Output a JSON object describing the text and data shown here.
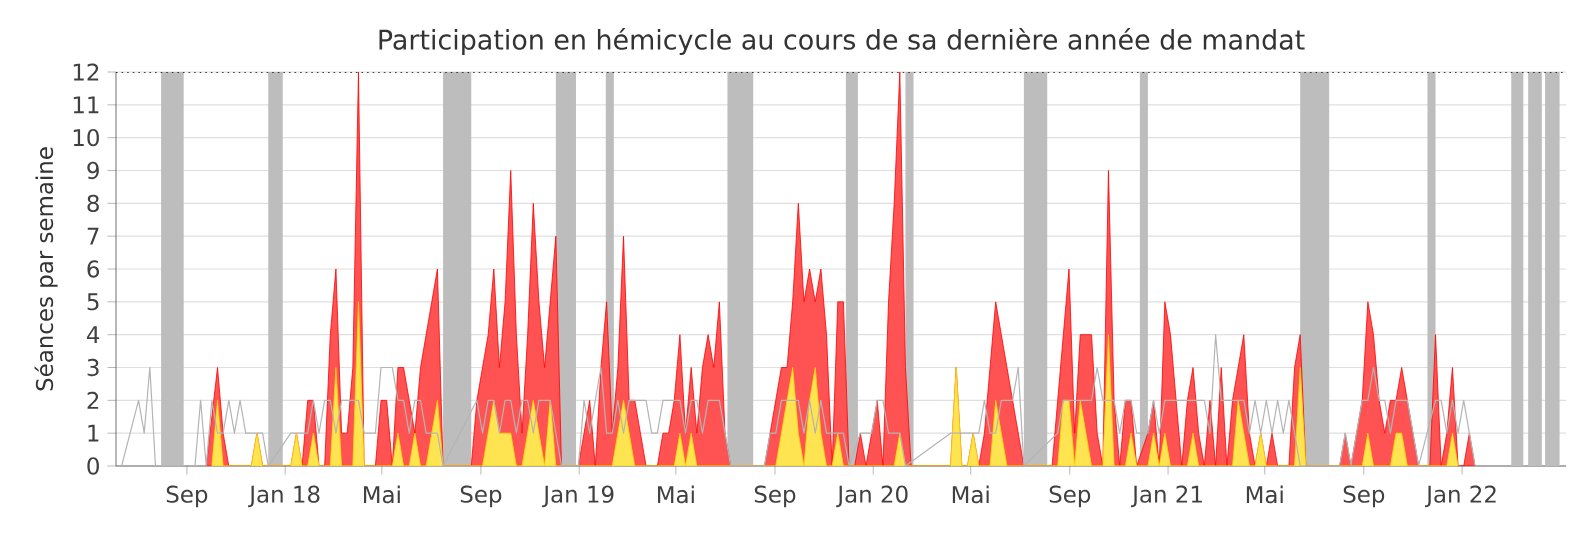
{
  "chart_data": {
    "type": "area",
    "title": "Participation en hémicycle au cours de sa dernière année de mandat",
    "ylabel": "Séances par semaine",
    "xlim": [
      "2017-06-05",
      "2022-05-10"
    ],
    "ylim": [
      0,
      12
    ],
    "xticks": [
      {
        "value": "2017-09-01",
        "label": "Sep"
      },
      {
        "value": "2018-01-01",
        "label": "Jan 18"
      },
      {
        "value": "2018-05-01",
        "label": "Mai"
      },
      {
        "value": "2018-09-01",
        "label": "Sep"
      },
      {
        "value": "2019-01-01",
        "label": "Jan 19"
      },
      {
        "value": "2019-05-01",
        "label": "Mai"
      },
      {
        "value": "2019-09-01",
        "label": "Sep"
      },
      {
        "value": "2020-01-01",
        "label": "Jan 20"
      },
      {
        "value": "2020-05-01",
        "label": "Mai"
      },
      {
        "value": "2020-09-01",
        "label": "Sep"
      },
      {
        "value": "2021-01-01",
        "label": "Jan 21"
      },
      {
        "value": "2021-05-01",
        "label": "Mai"
      },
      {
        "value": "2021-09-01",
        "label": "Sep"
      },
      {
        "value": "2022-01-01",
        "label": "Jan 22"
      }
    ],
    "yticks": [
      0,
      1,
      2,
      3,
      4,
      5,
      6,
      7,
      8,
      9,
      10,
      11,
      12
    ],
    "grid": "y",
    "bands": [
      {
        "axis": "x",
        "from": "2017-07-31",
        "to": "2017-08-28",
        "color": "#bdbdbd"
      },
      {
        "axis": "x",
        "from": "2017-12-11",
        "to": "2017-12-29",
        "color": "#bdbdbd"
      },
      {
        "axis": "x",
        "from": "2018-07-16",
        "to": "2018-08-20",
        "color": "#bdbdbd"
      },
      {
        "axis": "x",
        "from": "2018-12-03",
        "to": "2018-12-28",
        "color": "#bdbdbd"
      },
      {
        "axis": "x",
        "from": "2019-02-03",
        "to": "2019-02-13",
        "color": "#bdbdbd"
      },
      {
        "axis": "x",
        "from": "2019-07-04",
        "to": "2019-08-05",
        "color": "#bdbdbd"
      },
      {
        "axis": "x",
        "from": "2019-11-28",
        "to": "2019-12-13",
        "color": "#bdbdbd"
      },
      {
        "axis": "x",
        "from": "2020-02-10",
        "to": "2020-02-20",
        "color": "#bdbdbd"
      },
      {
        "axis": "x",
        "from": "2020-07-06",
        "to": "2020-08-04",
        "color": "#bdbdbd"
      },
      {
        "axis": "x",
        "from": "2020-11-27",
        "to": "2020-12-07",
        "color": "#bdbdbd"
      },
      {
        "axis": "x",
        "from": "2021-06-14",
        "to": "2021-07-20",
        "color": "#bdbdbd"
      },
      {
        "axis": "x",
        "from": "2021-11-19",
        "to": "2021-11-29",
        "color": "#bdbdbd"
      },
      {
        "axis": "x",
        "from": "2022-03-03",
        "to": "2022-03-18",
        "color": "#bdbdbd"
      },
      {
        "axis": "x",
        "from": "2022-03-24",
        "to": "2022-04-10",
        "color": "#bdbdbd"
      },
      {
        "axis": "x",
        "from": "2022-04-14",
        "to": "2022-05-02",
        "color": "#bdbdbd"
      }
    ],
    "ref_lines": [
      {
        "axis": "y",
        "value": 12,
        "color": "#000000",
        "line_style": "dotted"
      }
    ],
    "series": [
      {
        "color": "#ff0000",
        "x": [
          "2017-09-25",
          "2017-10-09",
          "2017-10-16",
          "2017-10-23",
          "2017-11-20",
          "2017-11-27",
          "2017-12-04",
          "2018-01-08",
          "2018-01-15",
          "2018-01-22",
          "2018-01-29",
          "2018-02-05",
          "2018-02-12",
          "2018-02-19",
          "2018-02-26",
          "2018-03-05",
          "2018-03-12",
          "2018-03-19",
          "2018-03-26",
          "2018-04-02",
          "2018-04-09",
          "2018-04-23",
          "2018-04-30",
          "2018-05-07",
          "2018-05-14",
          "2018-05-21",
          "2018-05-28",
          "2018-06-04",
          "2018-06-11",
          "2018-06-18",
          "2018-06-25",
          "2018-07-02",
          "2018-07-09",
          "2018-07-16",
          "2018-08-20",
          "2018-08-27",
          "2018-09-03",
          "2018-09-10",
          "2018-09-17",
          "2018-09-24",
          "2018-10-01",
          "2018-10-08",
          "2018-10-15",
          "2018-10-22",
          "2018-10-29",
          "2018-11-05",
          "2018-11-12",
          "2018-11-19",
          "2018-11-26",
          "2018-12-03",
          "2018-12-10",
          "2018-12-31",
          "2019-01-07",
          "2019-01-14",
          "2019-01-21",
          "2019-01-28",
          "2019-02-04",
          "2019-02-11",
          "2019-02-18",
          "2019-02-25",
          "2019-03-04",
          "2019-03-11",
          "2019-03-18",
          "2019-03-25",
          "2019-04-08",
          "2019-04-15",
          "2019-04-22",
          "2019-04-29",
          "2019-05-06",
          "2019-05-13",
          "2019-05-20",
          "2019-05-27",
          "2019-06-03",
          "2019-06-10",
          "2019-06-17",
          "2019-06-24",
          "2019-07-01",
          "2019-07-08",
          "2019-08-19",
          "2019-08-26",
          "2019-09-02",
          "2019-09-09",
          "2019-09-16",
          "2019-09-23",
          "2019-09-30",
          "2019-10-07",
          "2019-10-14",
          "2019-10-21",
          "2019-10-28",
          "2019-11-04",
          "2019-11-11",
          "2019-11-18",
          "2019-11-25",
          "2019-12-02",
          "2019-12-09",
          "2019-12-16",
          "2019-12-23",
          "2019-12-30",
          "2020-01-06",
          "2020-01-13",
          "2020-01-20",
          "2020-01-27",
          "2020-02-03",
          "2020-02-10",
          "2020-02-17",
          "2020-04-06",
          "2020-04-13",
          "2020-04-20",
          "2020-04-27",
          "2020-05-04",
          "2020-05-11",
          "2020-05-18",
          "2020-05-25",
          "2020-06-01",
          "2020-06-08",
          "2020-06-15",
          "2020-06-22",
          "2020-06-29",
          "2020-07-06",
          "2020-08-10",
          "2020-08-17",
          "2020-08-24",
          "2020-08-31",
          "2020-09-07",
          "2020-09-14",
          "2020-09-21",
          "2020-09-28",
          "2020-10-05",
          "2020-10-12",
          "2020-10-19",
          "2020-10-26",
          "2020-11-02",
          "2020-11-09",
          "2020-11-16",
          "2020-11-23",
          "2020-12-07",
          "2020-12-14",
          "2020-12-21",
          "2020-12-28",
          "2021-01-04",
          "2021-01-11",
          "2021-01-18",
          "2021-01-25",
          "2021-02-01",
          "2021-02-08",
          "2021-02-15",
          "2021-02-22",
          "2021-03-01",
          "2021-03-08",
          "2021-03-15",
          "2021-03-22",
          "2021-03-29",
          "2021-04-05",
          "2021-04-12",
          "2021-04-19",
          "2021-04-26",
          "2021-05-03",
          "2021-05-10",
          "2021-05-17",
          "2021-05-31",
          "2021-06-07",
          "2021-06-14",
          "2021-06-21",
          "2021-08-02",
          "2021-08-09",
          "2021-08-16",
          "2021-08-23",
          "2021-08-30",
          "2021-09-06",
          "2021-09-13",
          "2021-09-20",
          "2021-09-27",
          "2021-10-04",
          "2021-10-11",
          "2021-10-18",
          "2021-10-25",
          "2021-11-01",
          "2021-11-08",
          "2021-11-22",
          "2021-11-29",
          "2021-12-06",
          "2021-12-13",
          "2021-12-20",
          "2021-12-27",
          "2022-01-03",
          "2022-01-10",
          "2022-01-17"
        ],
        "values": [
          0,
          3,
          1,
          0,
          0,
          1,
          0,
          0,
          1,
          0,
          2,
          2,
          0,
          0,
          4,
          6,
          1,
          1,
          3,
          12,
          0,
          0,
          2,
          2,
          0,
          3,
          3,
          2,
          1,
          3,
          4,
          5,
          6,
          0,
          0,
          2,
          3,
          4,
          6,
          3,
          5,
          9,
          4,
          1,
          4,
          8,
          5,
          3,
          5,
          7,
          0,
          0,
          1,
          2,
          0,
          3,
          5,
          1,
          3,
          7,
          2,
          2,
          1,
          0,
          0,
          1,
          1,
          2,
          4,
          1,
          3,
          1,
          3,
          4,
          3,
          5,
          1,
          0,
          0,
          1,
          2,
          3,
          3,
          5,
          8,
          5,
          6,
          5,
          6,
          4,
          0,
          5,
          5,
          0,
          0,
          1,
          0,
          1,
          2,
          0,
          5,
          8,
          12,
          3,
          0,
          0,
          3,
          0,
          0,
          1,
          0,
          1,
          3,
          5,
          4,
          3,
          2,
          1,
          0,
          0,
          2,
          4,
          6,
          1,
          4,
          4,
          4,
          1,
          0,
          9,
          2,
          0,
          2,
          2,
          0,
          1,
          2,
          0,
          5,
          4,
          2,
          0,
          2,
          3,
          1,
          0,
          2,
          0,
          3,
          0,
          2,
          3,
          4,
          1,
          0,
          1,
          0,
          1,
          0,
          0,
          3,
          4,
          0,
          0,
          1,
          0,
          1,
          2,
          5,
          4,
          2,
          1,
          2,
          2,
          3,
          2,
          1,
          0,
          0,
          4,
          0,
          1,
          3,
          0,
          0,
          1,
          0
        ]
      },
      {
        "color": "#ffd700",
        "x": [
          "2017-10-02",
          "2017-10-09",
          "2017-10-16",
          "2017-11-20",
          "2017-11-27",
          "2017-12-04",
          "2018-01-08",
          "2018-01-15",
          "2018-01-22",
          "2018-01-29",
          "2018-02-05",
          "2018-02-12",
          "2018-02-26",
          "2018-03-05",
          "2018-03-12",
          "2018-03-26",
          "2018-04-02",
          "2018-04-09",
          "2018-05-14",
          "2018-05-21",
          "2018-05-28",
          "2018-06-04",
          "2018-06-11",
          "2018-06-18",
          "2018-06-25",
          "2018-07-02",
          "2018-07-09",
          "2018-07-16",
          "2018-09-03",
          "2018-09-10",
          "2018-09-17",
          "2018-09-24",
          "2018-10-01",
          "2018-10-08",
          "2018-10-15",
          "2018-10-22",
          "2018-10-29",
          "2018-11-05",
          "2018-11-12",
          "2018-11-19",
          "2018-11-26",
          "2018-12-03",
          "2019-02-11",
          "2019-02-18",
          "2019-02-25",
          "2019-03-04",
          "2019-03-11",
          "2019-04-29",
          "2019-05-06",
          "2019-05-13",
          "2019-05-20",
          "2019-05-27",
          "2019-09-02",
          "2019-09-09",
          "2019-09-16",
          "2019-09-23",
          "2019-09-30",
          "2019-10-07",
          "2019-10-14",
          "2019-10-21",
          "2019-10-28",
          "2019-11-04",
          "2019-11-11",
          "2019-11-18",
          "2019-11-25",
          "2020-01-27",
          "2020-02-03",
          "2020-02-10",
          "2020-04-06",
          "2020-04-13",
          "2020-04-20",
          "2020-04-27",
          "2020-05-04",
          "2020-05-11",
          "2020-05-25",
          "2020-06-01",
          "2020-06-08",
          "2020-06-15",
          "2020-08-17",
          "2020-08-24",
          "2020-08-31",
          "2020-09-07",
          "2020-09-14",
          "2020-09-21",
          "2020-09-28",
          "2020-10-12",
          "2020-10-19",
          "2020-10-26",
          "2020-11-09",
          "2020-11-16",
          "2020-11-23",
          "2020-12-07",
          "2020-12-14",
          "2020-12-21",
          "2020-12-28",
          "2021-01-04",
          "2021-01-25",
          "2021-02-01",
          "2021-02-08",
          "2021-03-22",
          "2021-03-29",
          "2021-04-05",
          "2021-04-12",
          "2021-04-19",
          "2021-04-26",
          "2021-05-03",
          "2021-06-07",
          "2021-06-14",
          "2021-06-21",
          "2021-08-30",
          "2021-09-06",
          "2021-09-13",
          "2021-10-04",
          "2021-10-11",
          "2021-10-18",
          "2021-10-25",
          "2021-12-13",
          "2021-12-20",
          "2021-12-27"
        ],
        "values": [
          0,
          2,
          0,
          0,
          1,
          0,
          0,
          1,
          0,
          0,
          1,
          0,
          0,
          3,
          0,
          0,
          5,
          0,
          0,
          1,
          0,
          0,
          1,
          0,
          0,
          1,
          2,
          0,
          0,
          1,
          2,
          1,
          1,
          1,
          0,
          0,
          1,
          2,
          1,
          0,
          2,
          0,
          0,
          1,
          2,
          1,
          0,
          0,
          1,
          0,
          1,
          0,
          0,
          1,
          2,
          3,
          1,
          0,
          2,
          3,
          1,
          0,
          0,
          1,
          0,
          0,
          1,
          0,
          0,
          3,
          0,
          0,
          1,
          0,
          0,
          2,
          1,
          0,
          0,
          2,
          2,
          0,
          2,
          1,
          0,
          0,
          4,
          0,
          0,
          1,
          0,
          0,
          1,
          0,
          1,
          0,
          0,
          1,
          0,
          0,
          2,
          1,
          0,
          0,
          1,
          0,
          0,
          3,
          0,
          0,
          1,
          0,
          0,
          1,
          1,
          0,
          0,
          1,
          0
        ]
      },
      {
        "type": "line",
        "color": "#b4b4b4",
        "x": [
          "2017-06-12",
          "2017-07-03",
          "2017-07-10",
          "2017-07-17",
          "2017-07-24",
          "2017-09-11",
          "2017-09-18",
          "2017-09-25",
          "2017-10-02",
          "2017-10-09",
          "2017-10-16",
          "2017-10-23",
          "2017-10-30",
          "2017-11-06",
          "2017-11-13",
          "2017-11-20",
          "2017-11-27",
          "2017-12-04",
          "2017-12-11",
          "2018-01-08",
          "2018-01-15",
          "2018-01-22",
          "2018-01-29",
          "2018-02-05",
          "2018-02-12",
          "2018-02-19",
          "2018-02-26",
          "2018-03-05",
          "2018-03-12",
          "2018-03-19",
          "2018-03-26",
          "2018-04-02",
          "2018-04-09",
          "2018-04-23",
          "2018-04-30",
          "2018-05-07",
          "2018-05-14",
          "2018-05-21",
          "2018-05-28",
          "2018-06-04",
          "2018-06-11",
          "2018-06-18",
          "2018-06-25",
          "2018-07-09",
          "2018-07-16",
          "2018-08-27",
          "2018-09-03",
          "2018-09-10",
          "2018-09-17",
          "2018-09-24",
          "2018-10-01",
          "2018-10-08",
          "2018-10-15",
          "2018-10-22",
          "2018-10-29",
          "2018-11-05",
          "2018-11-12",
          "2018-11-19",
          "2018-11-26",
          "2018-12-03",
          "2018-12-10",
          "2018-12-31",
          "2019-01-07",
          "2019-01-14",
          "2019-01-21",
          "2019-01-28",
          "2019-02-04",
          "2019-02-11",
          "2019-02-18",
          "2019-02-25",
          "2019-03-04",
          "2019-03-11",
          "2019-03-18",
          "2019-03-25",
          "2019-04-01",
          "2019-04-08",
          "2019-04-15",
          "2019-04-22",
          "2019-04-29",
          "2019-05-06",
          "2019-05-13",
          "2019-05-20",
          "2019-05-27",
          "2019-06-03",
          "2019-06-10",
          "2019-06-17",
          "2019-06-24",
          "2019-07-01",
          "2019-07-08",
          "2019-08-19",
          "2019-08-26",
          "2019-09-02",
          "2019-09-09",
          "2019-09-16",
          "2019-09-23",
          "2019-09-30",
          "2019-10-07",
          "2019-10-14",
          "2019-10-21",
          "2019-10-28",
          "2019-11-04",
          "2019-11-11",
          "2019-11-18",
          "2019-11-25",
          "2019-12-02",
          "2019-12-16",
          "2019-12-23",
          "2019-12-30",
          "2020-01-06",
          "2020-01-13",
          "2020-01-20",
          "2020-01-27",
          "2020-02-03",
          "2020-02-10",
          "2020-04-06",
          "2020-04-13",
          "2020-04-20",
          "2020-04-27",
          "2020-05-04",
          "2020-05-11",
          "2020-05-18",
          "2020-05-25",
          "2020-06-01",
          "2020-06-08",
          "2020-06-15",
          "2020-06-22",
          "2020-06-29",
          "2020-07-06",
          "2020-08-17",
          "2020-08-24",
          "2020-08-31",
          "2020-09-07",
          "2020-09-14",
          "2020-09-21",
          "2020-09-28",
          "2020-10-05",
          "2020-10-12",
          "2020-10-19",
          "2020-10-26",
          "2020-11-02",
          "2020-11-09",
          "2020-11-16",
          "2020-11-23",
          "2020-12-07",
          "2020-12-14",
          "2020-12-21",
          "2020-12-28",
          "2021-01-04",
          "2021-01-11",
          "2021-01-18",
          "2021-01-25",
          "2021-02-01",
          "2021-02-08",
          "2021-02-15",
          "2021-02-22",
          "2021-03-01",
          "2021-03-08",
          "2021-03-15",
          "2021-03-22",
          "2021-03-29",
          "2021-04-05",
          "2021-04-12",
          "2021-04-19",
          "2021-04-26",
          "2021-05-03",
          "2021-05-10",
          "2021-05-17",
          "2021-05-24",
          "2021-05-31",
          "2021-06-07",
          "2021-06-14",
          "2021-08-02",
          "2021-08-09",
          "2021-08-16",
          "2021-08-23",
          "2021-08-30",
          "2021-09-06",
          "2021-09-13",
          "2021-09-20",
          "2021-09-27",
          "2021-10-04",
          "2021-10-11",
          "2021-10-18",
          "2021-10-25",
          "2021-11-01",
          "2021-11-08",
          "2021-11-29",
          "2021-12-06",
          "2021-12-13",
          "2021-12-20",
          "2021-12-27",
          "2022-01-03",
          "2022-01-10",
          "2022-01-17"
        ],
        "values": [
          0,
          2,
          1,
          3,
          0,
          0,
          2,
          0,
          2,
          1,
          1,
          2,
          1,
          2,
          1,
          1,
          1,
          1,
          0,
          1,
          1,
          1,
          1,
          2,
          1,
          2,
          2,
          1,
          2,
          2,
          2,
          2,
          1,
          1,
          3,
          3,
          3,
          2,
          2,
          1,
          2,
          2,
          1,
          1,
          0,
          2,
          1,
          2,
          2,
          1,
          2,
          2,
          1,
          2,
          2,
          1,
          2,
          2,
          2,
          1,
          0,
          0,
          2,
          1,
          2,
          3,
          1,
          1,
          2,
          1,
          2,
          2,
          2,
          2,
          1,
          1,
          2,
          2,
          2,
          2,
          1,
          2,
          2,
          1,
          2,
          2,
          2,
          1,
          0,
          0,
          1,
          1,
          2,
          2,
          2,
          2,
          1,
          2,
          1,
          2,
          1,
          1,
          1,
          1,
          0,
          1,
          1,
          1,
          2,
          2,
          1,
          1,
          1,
          0,
          1,
          1,
          1,
          1,
          1,
          1,
          2,
          1,
          1,
          2,
          2,
          2,
          3,
          0,
          1,
          2,
          2,
          2,
          2,
          2,
          2,
          3,
          2,
          2,
          2,
          1,
          2,
          2,
          1,
          1,
          2,
          1,
          2,
          2,
          2,
          2,
          2,
          2,
          2,
          2,
          1,
          4,
          2,
          2,
          2,
          2,
          2,
          1,
          2,
          1,
          2,
          1,
          2,
          1,
          2,
          1,
          0,
          0,
          1,
          0,
          1,
          2,
          2,
          3,
          2,
          2,
          1,
          2,
          2,
          2,
          1,
          0,
          2,
          2,
          1,
          2,
          1,
          2,
          1,
          0
        ]
      }
    ]
  }
}
